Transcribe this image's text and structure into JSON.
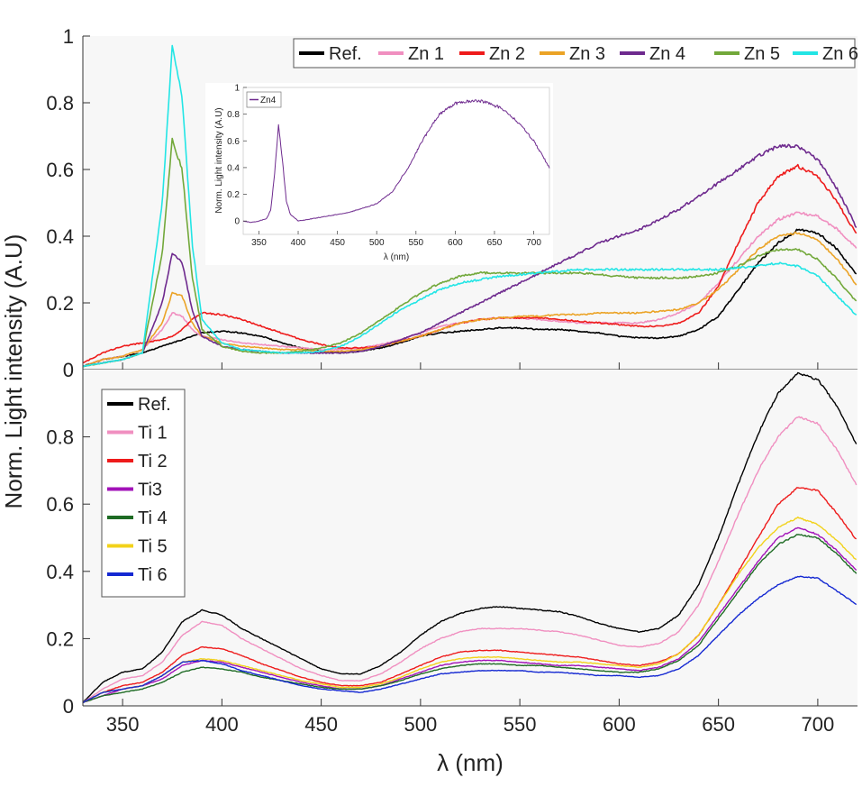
{
  "figure": {
    "ylabel": "Norm. Light intensity (A.U)",
    "xlabel": "λ (nm)",
    "x_ticks": [
      "350",
      "400",
      "450",
      "500",
      "550",
      "600",
      "650",
      "700"
    ],
    "top_y_ticks": [
      "0",
      "0.2",
      "0.4",
      "0.6",
      "0.8",
      "1"
    ],
    "bottom_y_ticks": [
      "0",
      "0.2",
      "0.4",
      "0.6",
      "0.8"
    ],
    "inset": {
      "legend": "Zn4",
      "ylabel": "Norm. Light intensity (A.U)",
      "xlabel": "λ (nm)",
      "x_ticks": [
        "350",
        "400",
        "450",
        "500",
        "550",
        "600",
        "650",
        "700"
      ],
      "y_ticks": [
        "0",
        "0.2",
        "0.4",
        "0.6",
        "0.8",
        "1"
      ]
    }
  },
  "chart_data": [
    {
      "type": "line",
      "panel": "top",
      "xlabel": "λ (nm)",
      "ylabel": "Norm. Light intensity (A.U)",
      "xlim": [
        330,
        720
      ],
      "ylim": [
        0,
        1
      ],
      "legend_position": "top-right",
      "x": [
        330,
        340,
        350,
        360,
        370,
        375,
        380,
        385,
        390,
        400,
        410,
        420,
        430,
        440,
        450,
        460,
        470,
        480,
        490,
        500,
        510,
        520,
        530,
        540,
        550,
        560,
        570,
        580,
        590,
        600,
        610,
        620,
        630,
        640,
        650,
        660,
        670,
        680,
        690,
        700,
        710,
        720
      ],
      "series": [
        {
          "name": "Ref.",
          "color": "#000000",
          "values": [
            0.01,
            0.03,
            0.04,
            0.05,
            0.07,
            0.08,
            0.09,
            0.1,
            0.11,
            0.115,
            0.11,
            0.1,
            0.08,
            0.065,
            0.055,
            0.05,
            0.055,
            0.065,
            0.08,
            0.1,
            0.11,
            0.115,
            0.12,
            0.125,
            0.125,
            0.12,
            0.12,
            0.115,
            0.11,
            0.1,
            0.095,
            0.095,
            0.1,
            0.12,
            0.16,
            0.24,
            0.32,
            0.38,
            0.42,
            0.41,
            0.36,
            0.28
          ]
        },
        {
          "name": "Zn 1",
          "color": "#f08fc0",
          "values": [
            0.01,
            0.03,
            0.04,
            0.06,
            0.12,
            0.17,
            0.16,
            0.12,
            0.1,
            0.09,
            0.08,
            0.075,
            0.07,
            0.065,
            0.06,
            0.06,
            0.065,
            0.075,
            0.09,
            0.11,
            0.13,
            0.14,
            0.15,
            0.155,
            0.155,
            0.15,
            0.145,
            0.14,
            0.14,
            0.14,
            0.14,
            0.15,
            0.17,
            0.2,
            0.26,
            0.33,
            0.4,
            0.45,
            0.47,
            0.46,
            0.42,
            0.36
          ]
        },
        {
          "name": "Zn 2",
          "color": "#ee1b1b",
          "values": [
            0.02,
            0.05,
            0.07,
            0.08,
            0.09,
            0.1,
            0.12,
            0.15,
            0.17,
            0.165,
            0.15,
            0.13,
            0.11,
            0.09,
            0.075,
            0.065,
            0.065,
            0.07,
            0.085,
            0.1,
            0.12,
            0.14,
            0.15,
            0.155,
            0.155,
            0.155,
            0.15,
            0.145,
            0.14,
            0.135,
            0.13,
            0.13,
            0.14,
            0.17,
            0.25,
            0.38,
            0.5,
            0.58,
            0.61,
            0.58,
            0.5,
            0.4
          ]
        },
        {
          "name": "Zn 3",
          "color": "#eba326",
          "values": [
            0.01,
            0.03,
            0.04,
            0.06,
            0.14,
            0.23,
            0.22,
            0.14,
            0.1,
            0.08,
            0.07,
            0.065,
            0.06,
            0.06,
            0.055,
            0.055,
            0.06,
            0.07,
            0.085,
            0.1,
            0.12,
            0.14,
            0.15,
            0.155,
            0.16,
            0.16,
            0.165,
            0.165,
            0.17,
            0.17,
            0.17,
            0.175,
            0.18,
            0.2,
            0.24,
            0.3,
            0.36,
            0.4,
            0.41,
            0.39,
            0.33,
            0.25
          ]
        },
        {
          "name": "Zn 4",
          "color": "#6e2a8e",
          "values": [
            0.01,
            0.02,
            0.03,
            0.05,
            0.2,
            0.35,
            0.32,
            0.18,
            0.1,
            0.07,
            0.06,
            0.055,
            0.05,
            0.05,
            0.05,
            0.05,
            0.055,
            0.07,
            0.09,
            0.11,
            0.14,
            0.17,
            0.2,
            0.23,
            0.26,
            0.29,
            0.32,
            0.35,
            0.38,
            0.4,
            0.42,
            0.45,
            0.48,
            0.52,
            0.56,
            0.6,
            0.64,
            0.67,
            0.67,
            0.63,
            0.54,
            0.42
          ]
        },
        {
          "name": "Zn 5",
          "color": "#72a83a",
          "values": [
            0.01,
            0.02,
            0.03,
            0.05,
            0.35,
            0.69,
            0.6,
            0.28,
            0.12,
            0.07,
            0.055,
            0.05,
            0.05,
            0.055,
            0.065,
            0.08,
            0.11,
            0.15,
            0.19,
            0.23,
            0.26,
            0.28,
            0.29,
            0.29,
            0.29,
            0.29,
            0.29,
            0.29,
            0.285,
            0.28,
            0.275,
            0.275,
            0.275,
            0.28,
            0.29,
            0.31,
            0.34,
            0.36,
            0.36,
            0.33,
            0.27,
            0.2
          ]
        },
        {
          "name": "Zn 6",
          "color": "#22e5e5",
          "values": [
            0.01,
            0.02,
            0.03,
            0.05,
            0.5,
            0.97,
            0.82,
            0.38,
            0.15,
            0.08,
            0.06,
            0.055,
            0.05,
            0.05,
            0.055,
            0.07,
            0.1,
            0.14,
            0.18,
            0.21,
            0.24,
            0.26,
            0.27,
            0.28,
            0.285,
            0.29,
            0.295,
            0.3,
            0.3,
            0.3,
            0.3,
            0.3,
            0.3,
            0.3,
            0.3,
            0.305,
            0.31,
            0.32,
            0.31,
            0.28,
            0.22,
            0.16
          ]
        }
      ]
    },
    {
      "type": "line",
      "panel": "bottom",
      "xlabel": "λ (nm)",
      "ylabel": "Norm. Light intensity (A.U)",
      "xlim": [
        330,
        720
      ],
      "ylim": [
        0,
        1
      ],
      "legend_position": "top-left",
      "x": [
        330,
        340,
        350,
        360,
        370,
        380,
        390,
        400,
        410,
        420,
        430,
        440,
        450,
        460,
        470,
        480,
        490,
        500,
        510,
        520,
        530,
        540,
        550,
        560,
        570,
        580,
        590,
        600,
        610,
        620,
        630,
        640,
        650,
        660,
        670,
        680,
        690,
        700,
        710,
        720
      ],
      "series": [
        {
          "name": "Ref.",
          "color": "#000000",
          "values": [
            0.01,
            0.07,
            0.1,
            0.11,
            0.16,
            0.25,
            0.285,
            0.27,
            0.23,
            0.2,
            0.17,
            0.14,
            0.11,
            0.095,
            0.095,
            0.12,
            0.16,
            0.21,
            0.25,
            0.275,
            0.29,
            0.295,
            0.29,
            0.285,
            0.28,
            0.265,
            0.245,
            0.23,
            0.22,
            0.23,
            0.27,
            0.36,
            0.5,
            0.66,
            0.81,
            0.93,
            0.99,
            0.97,
            0.89,
            0.77
          ]
        },
        {
          "name": "Ti 1",
          "color": "#f08fc0",
          "values": [
            0.01,
            0.05,
            0.08,
            0.09,
            0.13,
            0.21,
            0.25,
            0.24,
            0.2,
            0.17,
            0.14,
            0.11,
            0.09,
            0.075,
            0.075,
            0.095,
            0.13,
            0.17,
            0.2,
            0.22,
            0.23,
            0.23,
            0.23,
            0.225,
            0.22,
            0.21,
            0.195,
            0.18,
            0.175,
            0.185,
            0.22,
            0.3,
            0.43,
            0.57,
            0.7,
            0.8,
            0.86,
            0.84,
            0.76,
            0.65
          ]
        },
        {
          "name": "Ti 2",
          "color": "#ee1b1b",
          "values": [
            0.01,
            0.04,
            0.06,
            0.07,
            0.1,
            0.15,
            0.175,
            0.17,
            0.15,
            0.125,
            0.105,
            0.085,
            0.07,
            0.06,
            0.06,
            0.07,
            0.095,
            0.12,
            0.145,
            0.16,
            0.165,
            0.165,
            0.16,
            0.155,
            0.15,
            0.145,
            0.135,
            0.125,
            0.12,
            0.13,
            0.155,
            0.21,
            0.3,
            0.4,
            0.5,
            0.6,
            0.65,
            0.64,
            0.57,
            0.49
          ]
        },
        {
          "name": "Ti3",
          "color": "#a212b8",
          "values": [
            0.01,
            0.03,
            0.05,
            0.06,
            0.08,
            0.12,
            0.135,
            0.13,
            0.115,
            0.1,
            0.085,
            0.07,
            0.06,
            0.05,
            0.05,
            0.06,
            0.08,
            0.1,
            0.12,
            0.13,
            0.135,
            0.135,
            0.13,
            0.125,
            0.12,
            0.12,
            0.115,
            0.11,
            0.105,
            0.115,
            0.14,
            0.19,
            0.27,
            0.35,
            0.43,
            0.5,
            0.53,
            0.51,
            0.46,
            0.4
          ]
        },
        {
          "name": "Ti 4",
          "color": "#1e6b24",
          "values": [
            0.01,
            0.03,
            0.04,
            0.05,
            0.07,
            0.1,
            0.115,
            0.11,
            0.1,
            0.085,
            0.075,
            0.065,
            0.055,
            0.05,
            0.05,
            0.06,
            0.075,
            0.095,
            0.11,
            0.12,
            0.125,
            0.125,
            0.12,
            0.12,
            0.115,
            0.11,
            0.105,
            0.1,
            0.1,
            0.11,
            0.135,
            0.18,
            0.26,
            0.34,
            0.42,
            0.48,
            0.51,
            0.5,
            0.45,
            0.39
          ]
        },
        {
          "name": "Ti 5",
          "color": "#f2d21a",
          "values": [
            0.01,
            0.04,
            0.05,
            0.06,
            0.09,
            0.13,
            0.14,
            0.135,
            0.12,
            0.105,
            0.09,
            0.075,
            0.065,
            0.055,
            0.055,
            0.065,
            0.085,
            0.11,
            0.13,
            0.14,
            0.145,
            0.145,
            0.14,
            0.135,
            0.13,
            0.13,
            0.125,
            0.12,
            0.115,
            0.125,
            0.155,
            0.21,
            0.3,
            0.39,
            0.47,
            0.53,
            0.56,
            0.54,
            0.49,
            0.43
          ]
        },
        {
          "name": "Ti 6",
          "color": "#1428d2",
          "values": [
            0.01,
            0.04,
            0.05,
            0.06,
            0.09,
            0.13,
            0.135,
            0.125,
            0.105,
            0.09,
            0.075,
            0.06,
            0.05,
            0.045,
            0.04,
            0.05,
            0.065,
            0.08,
            0.095,
            0.1,
            0.105,
            0.105,
            0.105,
            0.1,
            0.1,
            0.095,
            0.09,
            0.09,
            0.085,
            0.09,
            0.11,
            0.15,
            0.21,
            0.27,
            0.32,
            0.36,
            0.385,
            0.38,
            0.34,
            0.3
          ]
        }
      ]
    },
    {
      "type": "line",
      "panel": "inset",
      "xlabel": "λ (nm)",
      "ylabel": "Norm. Light intensity (A.U)",
      "xlim": [
        330,
        720
      ],
      "ylim": [
        -0.1,
        1
      ],
      "legend_position": "top-left",
      "x": [
        330,
        340,
        350,
        360,
        365,
        370,
        375,
        380,
        385,
        390,
        400,
        410,
        420,
        440,
        460,
        480,
        500,
        520,
        540,
        560,
        580,
        600,
        620,
        630,
        640,
        660,
        680,
        700,
        710,
        720
      ],
      "series": [
        {
          "name": "Zn4",
          "color": "#6e2a8e",
          "values": [
            0.0,
            -0.01,
            0.0,
            0.02,
            0.08,
            0.35,
            0.72,
            0.45,
            0.15,
            0.05,
            0.0,
            0.01,
            0.02,
            0.04,
            0.06,
            0.09,
            0.13,
            0.22,
            0.4,
            0.62,
            0.8,
            0.88,
            0.9,
            0.9,
            0.89,
            0.84,
            0.74,
            0.6,
            0.5,
            0.4
          ]
        }
      ]
    }
  ]
}
